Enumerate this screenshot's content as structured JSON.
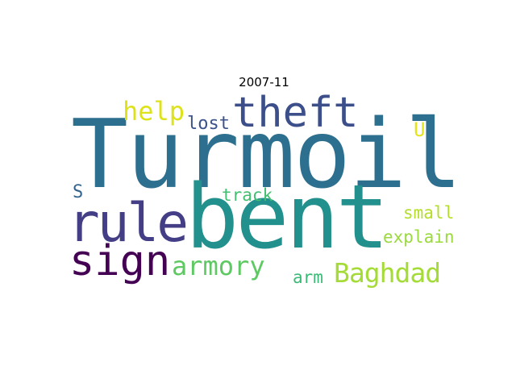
{
  "title": "2007-11",
  "words": [
    {
      "id": "turmoil",
      "text": "Turmoil",
      "color": "#2d6f8e"
    },
    {
      "id": "bent",
      "text": "bent",
      "color": "#22908c"
    },
    {
      "id": "theft",
      "text": "theft",
      "color": "#3c4f8a"
    },
    {
      "id": "rule",
      "text": "rule",
      "color": "#433e85"
    },
    {
      "id": "sign",
      "text": "sign",
      "color": "#440154"
    },
    {
      "id": "help",
      "text": "help",
      "color": "#dde318"
    },
    {
      "id": "lost",
      "text": "lost",
      "color": "#3b528b"
    },
    {
      "id": "u",
      "text": "U",
      "color": "#e5e419"
    },
    {
      "id": "s",
      "text": "S",
      "color": "#33638d"
    },
    {
      "id": "track",
      "text": "track",
      "color": "#43bf71"
    },
    {
      "id": "small",
      "text": "small",
      "color": "#b5de2b"
    },
    {
      "id": "explain",
      "text": "explain",
      "color": "#9bd93c"
    },
    {
      "id": "armory",
      "text": "armory",
      "color": "#5ec962"
    },
    {
      "id": "baghdad",
      "text": "Baghdad",
      "color": "#a5db36"
    },
    {
      "id": "arm",
      "text": "arm",
      "color": "#3aba76"
    }
  ]
}
